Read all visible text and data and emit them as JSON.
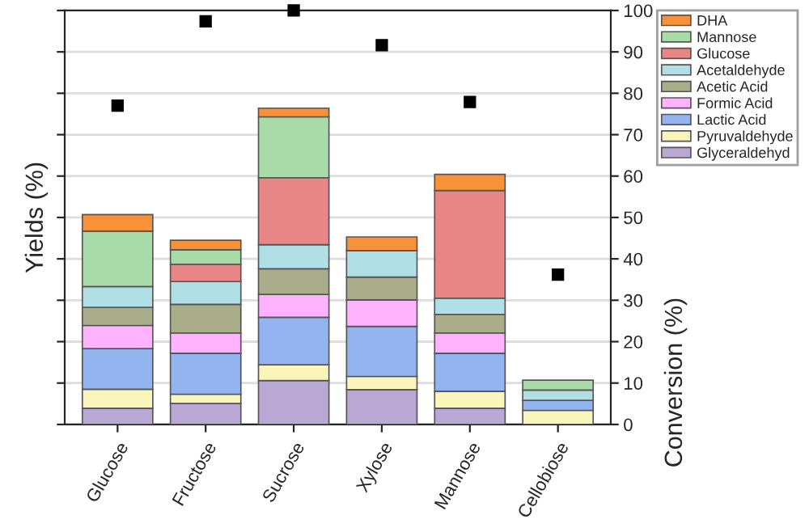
{
  "chart_data": {
    "type": "bar",
    "stacked": true,
    "categories": [
      "Glucose",
      "Fructose",
      "Sucrose",
      "Xylose",
      "Mannose",
      "Cellobiose"
    ],
    "ylabel": "Yields (%)",
    "y2label": "Conversion (%)",
    "ylim": [
      0,
      100
    ],
    "yticks": [
      0,
      10,
      20,
      30,
      40,
      50,
      60,
      70,
      80,
      90,
      100
    ],
    "grid": "y",
    "legend": "top right",
    "series": [
      {
        "name": "Glyceraldehyd",
        "color": "#b9a8d4",
        "values": [
          3.9,
          5.1,
          10.6,
          8.4,
          3.9,
          null
        ]
      },
      {
        "name": "Pyruvaldehyde",
        "color": "#faf5bb",
        "values": [
          4.6,
          2.2,
          3.8,
          3.2,
          4.1,
          3.4
        ]
      },
      {
        "name": "Lactic Acid",
        "color": "#94b4f0",
        "values": [
          9.8,
          9.9,
          11.5,
          12.1,
          9.2,
          2.4
        ]
      },
      {
        "name": "Formic Acid",
        "color": "#ffb3ff",
        "values": [
          5.6,
          4.9,
          5.5,
          6.4,
          4.9,
          null
        ]
      },
      {
        "name": "Acetic Acid",
        "color": "#a9ad8a",
        "values": [
          4.4,
          6.9,
          6.2,
          5.5,
          4.5,
          null
        ]
      },
      {
        "name": "Acetaldehyde",
        "color": "#b0e0e6",
        "values": [
          5.0,
          5.5,
          5.8,
          6.4,
          3.9,
          2.5
        ]
      },
      {
        "name": "Glucose",
        "color": "#e88585",
        "values": [
          null,
          4.2,
          16.2,
          null,
          26.0,
          null
        ]
      },
      {
        "name": "Mannose",
        "color": "#a8dba8",
        "values": [
          13.4,
          3.5,
          14.7,
          null,
          null,
          2.4
        ]
      },
      {
        "name": "DHA",
        "color": "#f7923a",
        "values": [
          4.0,
          2.3,
          2.1,
          3.3,
          3.9,
          null
        ]
      },
      {
        "type": "scatter",
        "color": "#000000",
        "marker": "square",
        "values": [
          77.0,
          97.4,
          100,
          91.6,
          77.9,
          36.2
        ]
      }
    ]
  }
}
